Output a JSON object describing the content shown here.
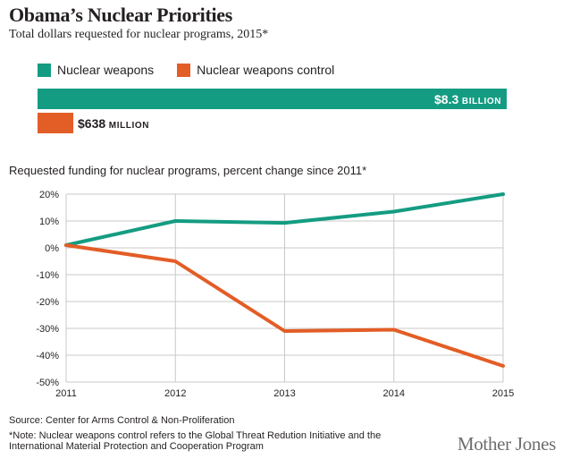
{
  "title": "Obama’s Nuclear Priorities",
  "subtitle": "Total dollars requested for nuclear programs, 2015*",
  "colors": {
    "weapons": "#149c82",
    "control": "#e35d26",
    "grid": "#c9c9c9"
  },
  "legend": [
    "Nuclear weapons",
    "Nuclear weapons control"
  ],
  "bars": [
    {
      "name": "Nuclear weapons",
      "amount": "$8.3",
      "unit": "BILLION",
      "value_millions": 8300
    },
    {
      "name": "Nuclear weapons control",
      "amount": "$638",
      "unit": "MILLION",
      "value_millions": 638
    }
  ],
  "line_title": "Requested funding for nuclear programs, percent change since 2011*",
  "chart_data": [
    {
      "type": "bar",
      "title": "Total dollars requested for nuclear programs, 2015*",
      "categories": [
        "Nuclear weapons",
        "Nuclear weapons control"
      ],
      "values": [
        8300,
        638
      ],
      "unit": "million dollars"
    },
    {
      "type": "line",
      "title": "Requested funding for nuclear programs, percent change since 2011*",
      "x": [
        "2011",
        "2012",
        "2013",
        "2014",
        "2015"
      ],
      "y_ticks": [
        "20%",
        "10%",
        "0%",
        "-10%",
        "-20%",
        "-30%",
        "-40%",
        "-50%"
      ],
      "ylim": [
        -50,
        20
      ],
      "grid": true,
      "series": [
        {
          "name": "Nuclear weapons",
          "values": [
            1,
            10,
            9.3,
            13.5,
            20
          ]
        },
        {
          "name": "Nuclear weapons control",
          "values": [
            1,
            -5,
            -31,
            -30.5,
            -44
          ]
        }
      ]
    }
  ],
  "source": "Source: Center for Arms Control & Non-Proliferation",
  "note": "*Note: Nuclear weapons control refers to the Global Threat Redution Initiative and the International Material Protection and Cooperation Program",
  "logo": "Mother Jones"
}
